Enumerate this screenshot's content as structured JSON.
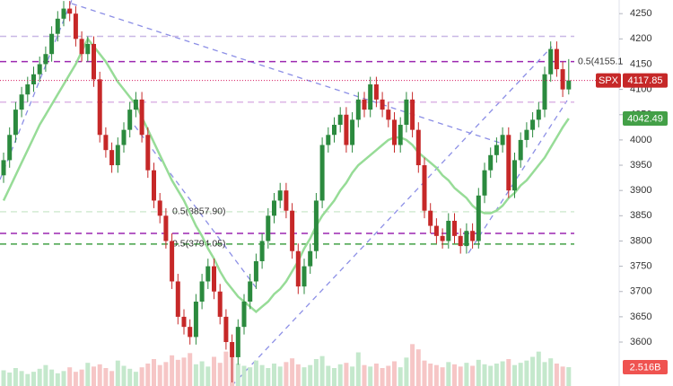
{
  "chart_data": {
    "type": "candlestick",
    "ylim": [
      3513,
      4277
    ],
    "yticks": [
      3600,
      3650,
      3700,
      3750,
      3800,
      3850,
      3900,
      3950,
      4000,
      4050,
      4100,
      4150,
      4200,
      4250
    ],
    "grid": false,
    "series": [
      {
        "name": "SPX",
        "up_color": "#2b8a3e",
        "down_color": "#c62828",
        "open": [
          3930,
          3960,
          4010,
          4060,
          4090,
          4110,
          4130,
          4150,
          4170,
          4210,
          4240,
          4260,
          4250,
          4200,
          4170,
          4190,
          4120,
          4010,
          3980,
          3950,
          3990,
          4020,
          4060,
          4080,
          4010,
          3940,
          3880,
          3850,
          3800,
          3720,
          3650,
          3630,
          3610,
          3680,
          3720,
          3750,
          3700,
          3650,
          3600,
          3570,
          3630,
          3680,
          3720,
          3760,
          3800,
          3850,
          3880,
          3900,
          3860,
          3780,
          3710,
          3750,
          3780,
          3880,
          3990,
          4010,
          4030,
          4050,
          3990,
          4040,
          4080,
          4060,
          4110,
          4080,
          4060,
          4040,
          3990,
          4030,
          4080,
          4020,
          3950,
          3860,
          3830,
          3810,
          3800,
          3840,
          3810,
          3790,
          3820,
          3800,
          3890,
          3940,
          3970,
          3990,
          4010,
          3900,
          3960,
          4000,
          4020,
          4040,
          4060,
          4130,
          4180,
          4140,
          4100
        ],
        "high": [
          3975,
          4025,
          4075,
          4105,
          4125,
          4145,
          4165,
          4185,
          4225,
          4255,
          4275,
          4275,
          4265,
          4215,
          4205,
          4205,
          4135,
          4025,
          3995,
          4005,
          4035,
          4075,
          4095,
          4095,
          4025,
          3955,
          3895,
          3865,
          3815,
          3735,
          3665,
          3645,
          3695,
          3735,
          3765,
          3765,
          3715,
          3665,
          3615,
          3645,
          3695,
          3735,
          3775,
          3815,
          3865,
          3895,
          3915,
          3915,
          3875,
          3795,
          3765,
          3795,
          3895,
          4005,
          4025,
          4045,
          4065,
          4065,
          4055,
          4095,
          4095,
          4125,
          4125,
          4095,
          4075,
          4055,
          4045,
          4095,
          4095,
          4035,
          3965,
          3875,
          3845,
          3825,
          3855,
          3855,
          3825,
          3835,
          3835,
          3905,
          3955,
          3985,
          4005,
          4025,
          4025,
          3975,
          4015,
          4035,
          4055,
          4075,
          4145,
          4195,
          4195,
          4155,
          4160
        ],
        "low": [
          3915,
          3945,
          3995,
          4045,
          4075,
          4095,
          4115,
          4135,
          4155,
          4195,
          4225,
          4235,
          4185,
          4155,
          4155,
          4105,
          3995,
          3965,
          3935,
          3935,
          3975,
          4005,
          4045,
          3995,
          3925,
          3865,
          3835,
          3785,
          3705,
          3635,
          3615,
          3595,
          3595,
          3665,
          3705,
          3685,
          3635,
          3585,
          3520,
          3555,
          3615,
          3665,
          3705,
          3745,
          3785,
          3835,
          3865,
          3845,
          3765,
          3695,
          3695,
          3735,
          3765,
          3865,
          3975,
          3995,
          4015,
          3975,
          3975,
          4025,
          4045,
          4045,
          4065,
          4045,
          4025,
          3975,
          3975,
          4015,
          4005,
          3935,
          3845,
          3815,
          3795,
          3785,
          3785,
          3795,
          3775,
          3775,
          3785,
          3785,
          3875,
          3925,
          3955,
          3975,
          3885,
          3885,
          3945,
          3985,
          4005,
          4025,
          4045,
          4115,
          4125,
          4085,
          4090
        ],
        "close": [
          3960,
          4010,
          4060,
          4090,
          4110,
          4130,
          4150,
          4170,
          4210,
          4240,
          4260,
          4250,
          4200,
          4170,
          4190,
          4120,
          4010,
          3980,
          3950,
          3990,
          4020,
          4060,
          4080,
          4010,
          3940,
          3880,
          3850,
          3800,
          3720,
          3650,
          3630,
          3610,
          3680,
          3720,
          3750,
          3700,
          3650,
          3600,
          3570,
          3630,
          3680,
          3720,
          3760,
          3800,
          3850,
          3880,
          3900,
          3860,
          3780,
          3710,
          3750,
          3780,
          3880,
          3990,
          4010,
          4030,
          4050,
          3990,
          4040,
          4080,
          4060,
          4110,
          4080,
          4060,
          4040,
          3990,
          4030,
          4080,
          4020,
          3950,
          3860,
          3830,
          3810,
          3800,
          3840,
          3810,
          3790,
          3820,
          3800,
          3890,
          3940,
          3970,
          3990,
          4010,
          3900,
          3960,
          4000,
          4020,
          4040,
          4060,
          4130,
          4180,
          4140,
          4100,
          4117.85
        ]
      }
    ],
    "ma": {
      "color": "#97dc97",
      "values": [
        3880,
        3905,
        3930,
        3955,
        3980,
        4005,
        4030,
        4050,
        4070,
        4090,
        4110,
        4130,
        4150,
        4175,
        4200,
        4185,
        4170,
        4155,
        4135,
        4115,
        4100,
        4085,
        4070,
        4045,
        4020,
        3995,
        3970,
        3945,
        3920,
        3900,
        3880,
        3855,
        3830,
        3810,
        3785,
        3765,
        3740,
        3720,
        3705,
        3690,
        3680,
        3670,
        3660,
        3670,
        3680,
        3695,
        3705,
        3720,
        3740,
        3760,
        3785,
        3805,
        3830,
        3850,
        3865,
        3880,
        3900,
        3915,
        3935,
        3950,
        3960,
        3970,
        3980,
        3990,
        4000,
        4005,
        4005,
        4000,
        3990,
        3975,
        3965,
        3955,
        3945,
        3930,
        3920,
        3905,
        3895,
        3885,
        3870,
        3860,
        3855,
        3855,
        3860,
        3870,
        3885,
        3895,
        3910,
        3920,
        3935,
        3950,
        3965,
        3985,
        4005,
        4025,
        4042.49
      ]
    },
    "volume": {
      "ylim": [
        0,
        12
      ],
      "up_color": "#c4e8cc",
      "down_color": "#f6c6c6",
      "label_color": "#ef5350",
      "values": [
        2.1,
        1.8,
        2.4,
        2.0,
        1.6,
        1.9,
        2.3,
        2.8,
        2.2,
        1.7,
        2.0,
        2.5,
        1.9,
        2.2,
        3.1,
        2.6,
        2.9,
        2.4,
        2.0,
        3.4,
        2.7,
        2.3,
        1.9,
        2.5,
        3.0,
        3.6,
        2.8,
        3.2,
        4.1,
        3.5,
        3.8,
        4.4,
        2.9,
        3.3,
        2.6,
        3.9,
        3.1,
        4.6,
        4.2,
        3.0,
        2.7,
        2.5,
        3.4,
        2.8,
        2.4,
        3.0,
        2.6,
        3.2,
        3.7,
        2.9,
        2.5,
        2.8,
        3.6,
        4.0,
        2.7,
        2.4,
        2.9,
        3.1,
        2.6,
        4.5,
        2.8,
        2.6,
        3.0,
        2.4,
        2.7,
        3.3,
        2.5,
        3.8,
        5.6,
        4.9,
        3.4,
        3.0,
        2.8,
        2.5,
        3.2,
        2.9,
        2.6,
        3.1,
        2.7,
        3.5,
        2.9,
        2.7,
        3.0,
        3.3,
        3.6,
        2.8,
        3.1,
        3.4,
        3.9,
        4.6,
        3.2,
        3.7,
        3.0,
        2.6,
        2.516
      ],
      "value_labels": [
        null,
        null,
        null,
        null,
        null,
        null,
        null,
        null,
        null,
        null,
        null,
        null,
        null,
        null,
        null,
        null,
        null,
        null,
        null,
        null,
        null,
        null,
        null,
        null,
        null,
        null,
        null,
        null,
        null,
        null,
        null,
        null,
        null,
        null,
        null,
        null,
        null,
        null,
        null,
        null,
        null,
        null,
        null,
        null,
        null,
        null,
        null,
        null,
        null,
        null,
        null,
        null,
        null,
        null,
        null,
        null,
        null,
        null,
        null,
        null,
        null,
        null,
        null,
        null,
        null,
        null,
        null,
        null,
        null,
        null,
        null,
        null,
        null,
        null,
        null,
        null,
        null,
        null,
        null,
        null,
        null,
        null,
        null,
        null,
        null,
        null,
        null,
        null,
        null,
        null,
        null,
        null,
        null,
        null,
        "2.516B"
      ]
    },
    "levels": [
      {
        "value": 4205,
        "color": "#c9b8e6"
      },
      {
        "value": 4155.1,
        "label": "0.5(4155.1",
        "color": "#9c27b0"
      },
      {
        "value": 4075,
        "color": "#dcb5e6"
      },
      {
        "value": 3857.9,
        "label": "0.5(3857.90)",
        "color": "#d3ebd3"
      },
      {
        "value": 3815,
        "color": "#9c27b0"
      },
      {
        "value": 3794.05,
        "label": "0.5(3794.05)",
        "color": "#43a047"
      }
    ],
    "price_line_color": "#d81b60",
    "price_tag_color": "#c62828",
    "ma_tag_color": "#43a047"
  }
}
